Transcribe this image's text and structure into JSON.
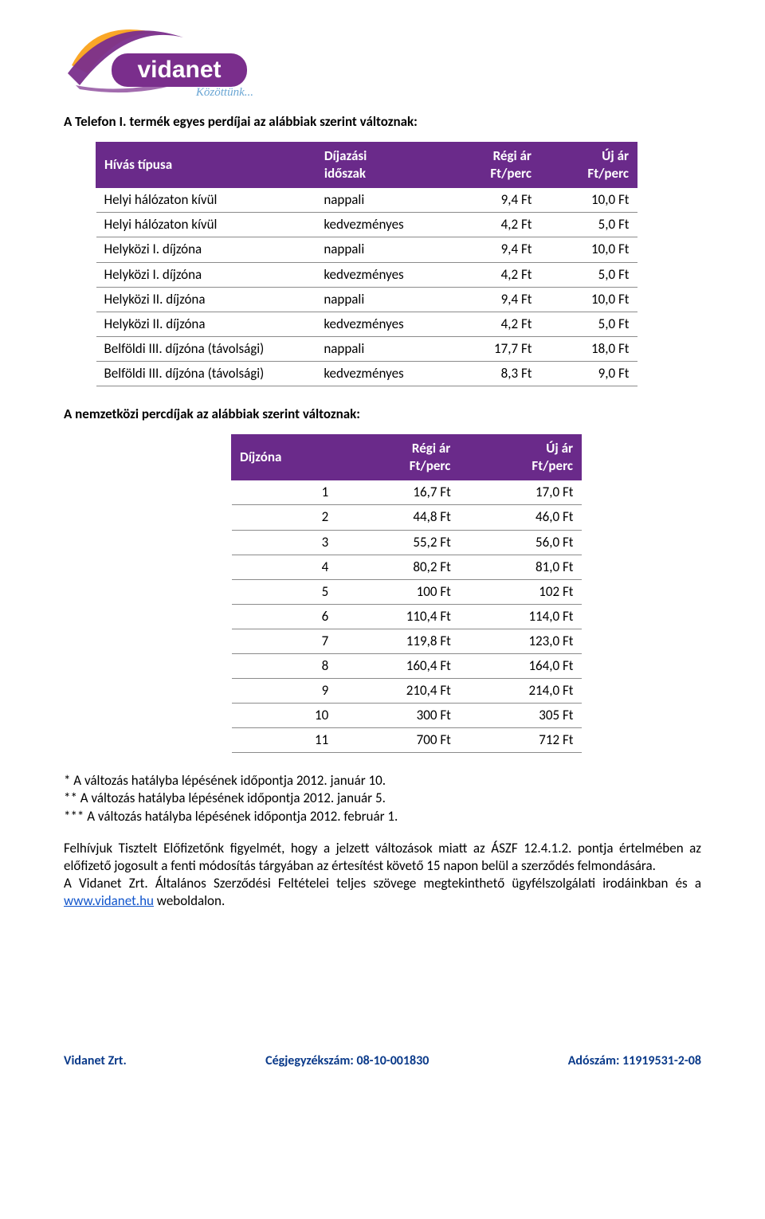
{
  "logo": {
    "brand": "vidanet",
    "tagline": "Közöttünk...",
    "swoosh_color1": "#faa21b",
    "swoosh_color2": "#7a2e8c",
    "text_color": "#ffffff",
    "tagline_color": "#6aa6d4"
  },
  "heading1": "A Telefon I. termék egyes perdíjai az alábbiak szerint változnak:",
  "table1": {
    "header_bg": "#6a2a8a",
    "header_fg": "#ffffff",
    "border_color": "#8b8b8b",
    "columns": [
      "Hívás típusa",
      "Díjazási időszak",
      "Régi ár Ft/perc",
      "Új ár Ft/perc"
    ],
    "rows": [
      [
        "Helyi hálózaton kívül",
        "nappali",
        "9,4 Ft",
        "10,0 Ft"
      ],
      [
        "Helyi hálózaton kívül",
        "kedvezményes",
        "4,2 Ft",
        "5,0 Ft"
      ],
      [
        "Helyközi I. díjzóna",
        "nappali",
        "9,4 Ft",
        "10,0 Ft"
      ],
      [
        "Helyközi I. díjzóna",
        "kedvezményes",
        "4,2 Ft",
        "5,0 Ft"
      ],
      [
        "Helyközi II. díjzóna",
        "nappali",
        "9,4 Ft",
        "10,0 Ft"
      ],
      [
        "Helyközi II. díjzóna",
        "kedvezményes",
        "4,2 Ft",
        "5,0 Ft"
      ],
      [
        "Belföldi III. díjzóna (távolsági)",
        "nappali",
        "17,7 Ft",
        "18,0 Ft"
      ],
      [
        "Belföldi III. díjzóna (távolsági)",
        "kedvezményes",
        "8,3 Ft",
        "9,0 Ft"
      ]
    ]
  },
  "heading2": "A nemzetközi percdíjak az alábbiak szerint változnak:",
  "table2": {
    "header_bg": "#6a2a8a",
    "header_fg": "#ffffff",
    "border_color": "#8b8b8b",
    "columns": [
      "Díjzóna",
      "Régi ár Ft/perc",
      "Új ár Ft/perc"
    ],
    "rows": [
      [
        "1",
        "16,7 Ft",
        "17,0 Ft"
      ],
      [
        "2",
        "44,8 Ft",
        "46,0 Ft"
      ],
      [
        "3",
        "55,2 Ft",
        "56,0 Ft"
      ],
      [
        "4",
        "80,2 Ft",
        "81,0 Ft"
      ],
      [
        "5",
        "100 Ft",
        "102 Ft"
      ],
      [
        "6",
        "110,4 Ft",
        "114,0 Ft"
      ],
      [
        "7",
        "119,8 Ft",
        "123,0 Ft"
      ],
      [
        "8",
        "160,4 Ft",
        "164,0 Ft"
      ],
      [
        "9",
        "210,4 Ft",
        "214,0 Ft"
      ],
      [
        "10",
        "300 Ft",
        "305 Ft"
      ],
      [
        "11",
        "700 Ft",
        "712 Ft"
      ]
    ]
  },
  "notes": {
    "n1": "* A változás hatályba lépésének időpontja 2012. január 10.",
    "n2": "** A változás hatályba lépésének időpontja 2012. január 5.",
    "n3": "*** A változás hatályba lépésének időpontja 2012. február 1."
  },
  "paragraph": {
    "line1": "Felhívjuk Tisztelt Előfizetőnk figyelmét, hogy a jelzett változások miatt az ÁSZF 12.4.1.2. pontja értelmében az előfizető jogosult a fenti módosítás tárgyában az értesítést követő 15 napon belül a szerződés felmondására.",
    "line2_pre": "A Vidanet Zrt. Általános Szerződési Feltételei teljes szövege megtekinthető ügyfélszolgálati irodáinkban és a ",
    "link_text": "www.vidanet.hu",
    "line2_post": " weboldalon."
  },
  "footer": {
    "company": "Vidanet Zrt.",
    "reg": "Cégjegyzékszám: 08-10-001830",
    "tax": "Adószám: 11919531-2-08",
    "color": "#0a3a8a"
  }
}
